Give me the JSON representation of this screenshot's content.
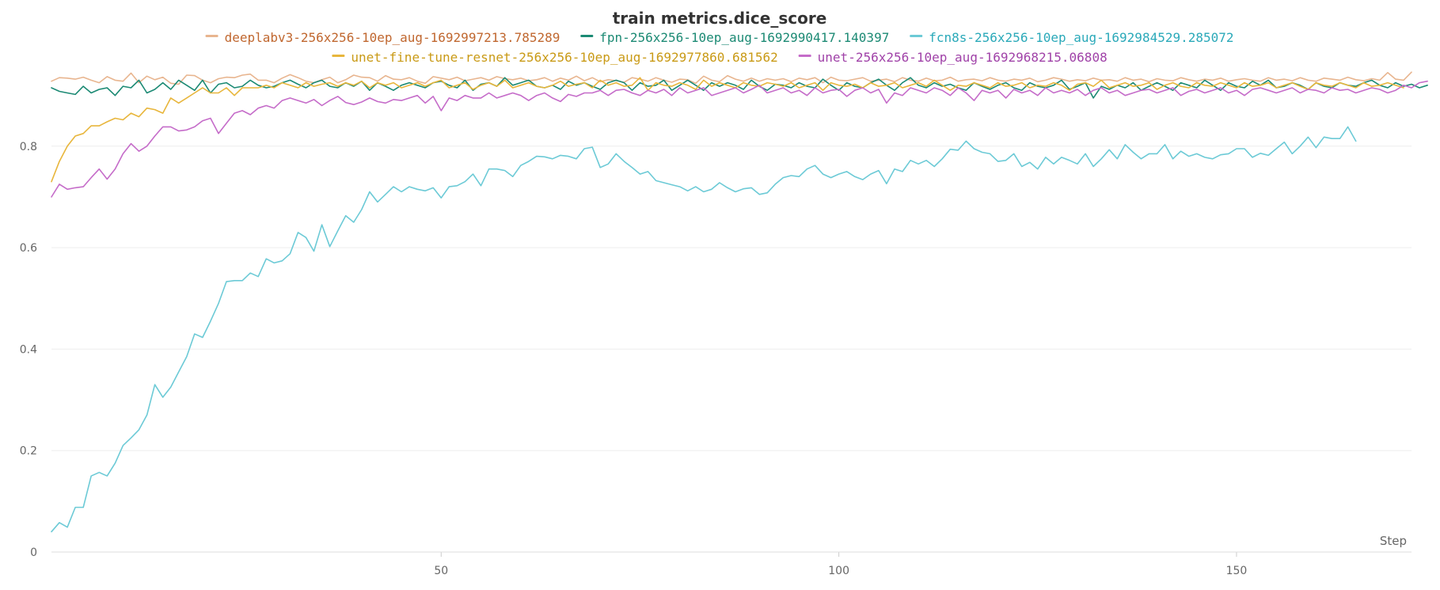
{
  "chart_data": {
    "type": "line",
    "title": "train metrics.dice_score",
    "xlabel": "Step",
    "ylabel": "",
    "xlim": [
      1,
      172
    ],
    "ylim": [
      0,
      0.94
    ],
    "x_ticks": [
      50,
      100,
      150
    ],
    "y_ticks": [
      0,
      0.2,
      0.4,
      0.6,
      0.8
    ],
    "grid": true,
    "legend_position": "top",
    "series": [
      {
        "name": "deeplabv3-256x256-10ep_aug-1692997213.785289",
        "color": "#e8b58f",
        "legend_text_color": "#c0672f",
        "values": [
          0.928,
          0.935,
          0.934,
          0.932,
          0.936,
          0.93,
          0.925,
          0.937,
          0.93,
          0.928,
          0.944,
          0.925,
          0.938,
          0.931,
          0.936,
          0.924,
          0.922,
          0.94,
          0.939,
          0.93,
          0.925,
          0.933,
          0.936,
          0.935,
          0.94,
          0.942,
          0.93,
          0.93,
          0.925,
          0.934,
          0.941,
          0.935,
          0.928,
          0.925,
          0.931,
          0.936,
          0.925,
          0.931,
          0.94,
          0.936,
          0.935,
          0.928,
          0.939,
          0.932,
          0.931,
          0.935,
          0.928,
          0.924,
          0.937,
          0.934,
          0.931,
          0.936,
          0.929,
          0.932,
          0.935,
          0.93,
          0.937,
          0.933,
          0.931,
          0.934,
          0.929,
          0.931,
          0.935,
          0.928,
          0.934,
          0.93,
          0.938,
          0.929,
          0.935,
          0.927,
          0.931,
          0.929,
          0.926,
          0.935,
          0.932,
          0.928,
          0.935,
          0.93,
          0.926,
          0.932,
          0.931,
          0.924,
          0.938,
          0.93,
          0.927,
          0.939,
          0.932,
          0.928,
          0.934,
          0.928,
          0.933,
          0.93,
          0.933,
          0.927,
          0.934,
          0.931,
          0.935,
          0.925,
          0.936,
          0.93,
          0.929,
          0.932,
          0.935,
          0.928,
          0.93,
          0.932,
          0.927,
          0.935,
          0.93,
          0.928,
          0.934,
          0.929,
          0.93,
          0.936,
          0.928,
          0.931,
          0.932,
          0.929,
          0.935,
          0.93,
          0.928,
          0.932,
          0.93,
          0.934,
          0.927,
          0.93,
          0.935,
          0.932,
          0.928,
          0.931,
          0.929,
          0.934,
          0.93,
          0.931,
          0.928,
          0.935,
          0.93,
          0.932,
          0.927,
          0.933,
          0.93,
          0.929,
          0.935,
          0.931,
          0.928,
          0.932,
          0.93,
          0.934,
          0.928,
          0.931,
          0.933,
          0.93,
          0.928,
          0.935,
          0.93,
          0.932,
          0.929,
          0.935,
          0.93,
          0.928,
          0.934,
          0.932,
          0.93,
          0.936,
          0.931,
          0.929,
          0.933,
          0.93,
          0.945,
          0.932,
          0.93,
          0.946
        ]
      },
      {
        "name": "fpn-256x256-10ep_aug-1692990417.140397",
        "color": "#1c8a74",
        "legend_text_color": "#1c8a74",
        "values": [
          0.915,
          0.908,
          0.905,
          0.902,
          0.918,
          0.905,
          0.912,
          0.915,
          0.9,
          0.918,
          0.915,
          0.93,
          0.905,
          0.912,
          0.925,
          0.912,
          0.93,
          0.92,
          0.91,
          0.93,
          0.905,
          0.922,
          0.925,
          0.915,
          0.918,
          0.93,
          0.92,
          0.915,
          0.918,
          0.925,
          0.93,
          0.922,
          0.915,
          0.925,
          0.93,
          0.918,
          0.915,
          0.925,
          0.918,
          0.928,
          0.91,
          0.925,
          0.918,
          0.91,
          0.92,
          0.925,
          0.92,
          0.915,
          0.925,
          0.928,
          0.92,
          0.915,
          0.93,
          0.91,
          0.922,
          0.925,
          0.918,
          0.935,
          0.92,
          0.925,
          0.93,
          0.918,
          0.915,
          0.92,
          0.912,
          0.928,
          0.92,
          0.925,
          0.918,
          0.912,
          0.925,
          0.93,
          0.925,
          0.91,
          0.925,
          0.918,
          0.92,
          0.93,
          0.91,
          0.92,
          0.93,
          0.92,
          0.91,
          0.925,
          0.918,
          0.925,
          0.92,
          0.912,
          0.93,
          0.918,
          0.91,
          0.922,
          0.92,
          0.915,
          0.925,
          0.918,
          0.915,
          0.932,
          0.92,
          0.91,
          0.925,
          0.918,
          0.915,
          0.925,
          0.932,
          0.92,
          0.91,
          0.925,
          0.935,
          0.92,
          0.915,
          0.925,
          0.918,
          0.922,
          0.915,
          0.91,
          0.925,
          0.918,
          0.912,
          0.92,
          0.925,
          0.915,
          0.91,
          0.925,
          0.918,
          0.915,
          0.92,
          0.93,
          0.912,
          0.918,
          0.925,
          0.895,
          0.918,
          0.912,
          0.92,
          0.915,
          0.925,
          0.91,
          0.918,
          0.925,
          0.918,
          0.91,
          0.925,
          0.92,
          0.915,
          0.93,
          0.92,
          0.91,
          0.925,
          0.918,
          0.915,
          0.928,
          0.92,
          0.93,
          0.915,
          0.918,
          0.925,
          0.92,
          0.912,
          0.925,
          0.918,
          0.915,
          0.925,
          0.92,
          0.918,
          0.925,
          0.93,
          0.92,
          0.915,
          0.925,
          0.918,
          0.922,
          0.915,
          0.92
        ]
      },
      {
        "name": "fcn8s-256x256-10ep_aug-1692984529.285072",
        "color": "#6ccad6",
        "legend_text_color": "#2aa9b9",
        "values": [
          0.04,
          0.058,
          0.049,
          0.088,
          0.088,
          0.15,
          0.157,
          0.15,
          0.175,
          0.21,
          0.225,
          0.241,
          0.27,
          0.33,
          0.305,
          0.325,
          0.355,
          0.385,
          0.43,
          0.423,
          0.455,
          0.49,
          0.533,
          0.535,
          0.535,
          0.55,
          0.543,
          0.578,
          0.57,
          0.574,
          0.588,
          0.63,
          0.62,
          0.593,
          0.645,
          0.602,
          0.633,
          0.663,
          0.65,
          0.675,
          0.71,
          0.69,
          0.705,
          0.72,
          0.71,
          0.72,
          0.715,
          0.712,
          0.718,
          0.698,
          0.72,
          0.722,
          0.73,
          0.745,
          0.722,
          0.755,
          0.755,
          0.752,
          0.74,
          0.762,
          0.77,
          0.78,
          0.779,
          0.775,
          0.782,
          0.78,
          0.775,
          0.795,
          0.798,
          0.758,
          0.765,
          0.785,
          0.77,
          0.758,
          0.745,
          0.75,
          0.732,
          0.728,
          0.724,
          0.72,
          0.712,
          0.72,
          0.71,
          0.715,
          0.728,
          0.718,
          0.71,
          0.716,
          0.718,
          0.705,
          0.708,
          0.725,
          0.738,
          0.742,
          0.74,
          0.755,
          0.762,
          0.745,
          0.738,
          0.745,
          0.75,
          0.74,
          0.734,
          0.745,
          0.752,
          0.726,
          0.755,
          0.75,
          0.772,
          0.765,
          0.772,
          0.76,
          0.775,
          0.794,
          0.792,
          0.81,
          0.795,
          0.788,
          0.785,
          0.77,
          0.772,
          0.785,
          0.76,
          0.768,
          0.755,
          0.778,
          0.765,
          0.778,
          0.772,
          0.765,
          0.785,
          0.76,
          0.775,
          0.793,
          0.775,
          0.803,
          0.788,
          0.775,
          0.785,
          0.785,
          0.803,
          0.775,
          0.79,
          0.78,
          0.785,
          0.778,
          0.775,
          0.783,
          0.785,
          0.795,
          0.795,
          0.778,
          0.786,
          0.782,
          0.795,
          0.808,
          0.785,
          0.8,
          0.818,
          0.797,
          0.818,
          0.815,
          0.815,
          0.838,
          0.81
        ]
      },
      {
        "name": "unet-fine-tune-resnet-256x256-10ep_aug-1692977860.681562",
        "color": "#e8b63c",
        "legend_text_color": "#c99a16",
        "values": [
          0.73,
          0.77,
          0.8,
          0.82,
          0.825,
          0.84,
          0.84,
          0.848,
          0.855,
          0.852,
          0.865,
          0.858,
          0.875,
          0.872,
          0.865,
          0.895,
          0.885,
          0.895,
          0.905,
          0.915,
          0.905,
          0.905,
          0.915,
          0.9,
          0.915,
          0.915,
          0.915,
          0.92,
          0.915,
          0.925,
          0.92,
          0.915,
          0.925,
          0.918,
          0.922,
          0.925,
          0.918,
          0.925,
          0.92,
          0.928,
          0.915,
          0.925,
          0.92,
          0.925,
          0.915,
          0.92,
          0.925,
          0.918,
          0.925,
          0.93,
          0.915,
          0.92,
          0.925,
          0.912,
          0.92,
          0.925,
          0.918,
          0.93,
          0.915,
          0.92,
          0.925,
          0.918,
          0.915,
          0.92,
          0.928,
          0.918,
          0.922,
          0.925,
          0.915,
          0.93,
          0.92,
          0.925,
          0.918,
          0.92,
          0.935,
          0.91,
          0.925,
          0.92,
          0.918,
          0.925,
          0.92,
          0.912,
          0.93,
          0.918,
          0.925,
          0.92,
          0.915,
          0.925,
          0.92,
          0.918,
          0.925,
          0.922,
          0.918,
          0.925,
          0.915,
          0.92,
          0.925,
          0.91,
          0.925,
          0.92,
          0.918,
          0.922,
          0.915,
          0.925,
          0.918,
          0.92,
          0.925,
          0.915,
          0.92,
          0.925,
          0.918,
          0.93,
          0.92,
          0.91,
          0.92,
          0.918,
          0.925,
          0.92,
          0.915,
          0.925,
          0.918,
          0.92,
          0.925,
          0.915,
          0.92,
          0.918,
          0.925,
          0.92,
          0.91,
          0.922,
          0.925,
          0.918,
          0.93,
          0.915,
          0.92,
          0.925,
          0.918,
          0.92,
          0.925,
          0.912,
          0.92,
          0.925,
          0.918,
          0.915,
          0.925,
          0.92,
          0.918,
          0.925,
          0.92,
          0.915,
          0.925,
          0.918,
          0.92,
          0.925,
          0.915,
          0.92,
          0.925,
          0.918,
          0.912,
          0.925,
          0.92,
          0.918,
          0.925,
          0.92,
          0.915,
          0.925,
          0.918,
          0.92,
          0.925,
          0.92,
          0.915
        ]
      },
      {
        "name": "unet-256x256-10ep_aug-1692968215.06808",
        "color": "#c56cc9",
        "legend_text_color": "#a042a8",
        "values": [
          0.7,
          0.725,
          0.715,
          0.718,
          0.72,
          0.738,
          0.755,
          0.735,
          0.755,
          0.785,
          0.805,
          0.79,
          0.8,
          0.82,
          0.838,
          0.838,
          0.83,
          0.832,
          0.838,
          0.85,
          0.855,
          0.825,
          0.845,
          0.865,
          0.87,
          0.862,
          0.875,
          0.88,
          0.875,
          0.89,
          0.895,
          0.89,
          0.885,
          0.892,
          0.88,
          0.89,
          0.898,
          0.886,
          0.882,
          0.887,
          0.895,
          0.888,
          0.885,
          0.892,
          0.89,
          0.895,
          0.9,
          0.885,
          0.898,
          0.87,
          0.895,
          0.89,
          0.9,
          0.895,
          0.895,
          0.905,
          0.895,
          0.9,
          0.905,
          0.9,
          0.89,
          0.9,
          0.905,
          0.895,
          0.888,
          0.902,
          0.898,
          0.905,
          0.905,
          0.91,
          0.9,
          0.91,
          0.912,
          0.905,
          0.9,
          0.91,
          0.905,
          0.912,
          0.9,
          0.915,
          0.905,
          0.91,
          0.915,
          0.9,
          0.905,
          0.91,
          0.915,
          0.905,
          0.912,
          0.92,
          0.905,
          0.91,
          0.915,
          0.905,
          0.91,
          0.9,
          0.915,
          0.905,
          0.91,
          0.912,
          0.898,
          0.91,
          0.915,
          0.905,
          0.912,
          0.885,
          0.905,
          0.9,
          0.915,
          0.91,
          0.905,
          0.915,
          0.91,
          0.9,
          0.915,
          0.905,
          0.89,
          0.91,
          0.905,
          0.91,
          0.895,
          0.912,
          0.905,
          0.91,
          0.9,
          0.915,
          0.905,
          0.91,
          0.905,
          0.912,
          0.9,
          0.91,
          0.915,
          0.905,
          0.91,
          0.9,
          0.905,
          0.91,
          0.912,
          0.905,
          0.91,
          0.915,
          0.9,
          0.908,
          0.912,
          0.905,
          0.91,
          0.915,
          0.905,
          0.91,
          0.9,
          0.912,
          0.915,
          0.91,
          0.905,
          0.91,
          0.915,
          0.905,
          0.912,
          0.91,
          0.905,
          0.915,
          0.91,
          0.912,
          0.905,
          0.91,
          0.915,
          0.912,
          0.905,
          0.91,
          0.92,
          0.915,
          0.925,
          0.928
        ]
      }
    ]
  }
}
